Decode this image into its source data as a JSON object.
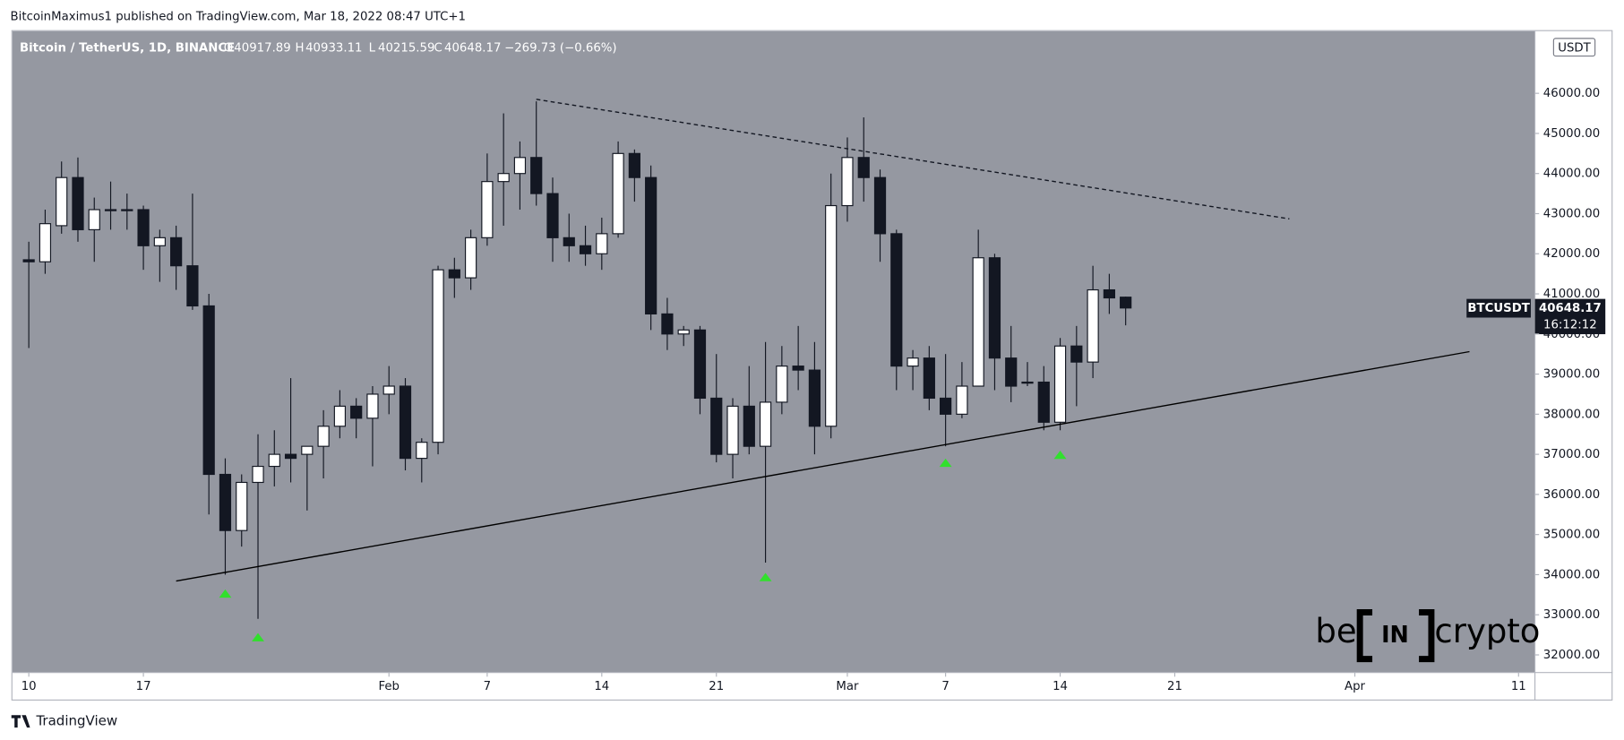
{
  "header": {
    "byline": "BitcoinMaximus1 published on TradingView.com, Mar 18, 2022 08:47 UTC+1"
  },
  "footer": {
    "brand": "TradingView"
  },
  "logo": {
    "left": "be",
    "middle": "IN",
    "right": "crypto"
  },
  "chart_data": {
    "type": "candlestick",
    "legend": {
      "symbol": "Bitcoin / TetherUS, 1D, BINANCE",
      "labels": [
        "O",
        "H",
        "L",
        "C"
      ],
      "change": "−269.73 (−0.66%)"
    },
    "currency": "USDT",
    "ticker": "BTCUSDT",
    "countdown": "16:12:12",
    "up_color": "#ffffff",
    "down_color": "#131722",
    "background": "#9598a1",
    "x": [
      "2022-01-10",
      "2022-01-11",
      "2022-01-12",
      "2022-01-13",
      "2022-01-14",
      "2022-01-15",
      "2022-01-16",
      "2022-01-17",
      "2022-01-18",
      "2022-01-19",
      "2022-01-20",
      "2022-01-21",
      "2022-01-22",
      "2022-01-23",
      "2022-01-24",
      "2022-01-25",
      "2022-01-26",
      "2022-01-27",
      "2022-01-28",
      "2022-01-29",
      "2022-01-30",
      "2022-01-31",
      "2022-02-01",
      "2022-02-02",
      "2022-02-03",
      "2022-02-04",
      "2022-02-05",
      "2022-02-06",
      "2022-02-07",
      "2022-02-08",
      "2022-02-09",
      "2022-02-10",
      "2022-02-11",
      "2022-02-12",
      "2022-02-13",
      "2022-02-14",
      "2022-02-15",
      "2022-02-16",
      "2022-02-17",
      "2022-02-18",
      "2022-02-19",
      "2022-02-20",
      "2022-02-21",
      "2022-02-22",
      "2022-02-23",
      "2022-02-24",
      "2022-02-25",
      "2022-02-26",
      "2022-02-27",
      "2022-02-28",
      "2022-03-01",
      "2022-03-02",
      "2022-03-03",
      "2022-03-04",
      "2022-03-05",
      "2022-03-06",
      "2022-03-07",
      "2022-03-08",
      "2022-03-09",
      "2022-03-10",
      "2022-03-11",
      "2022-03-12",
      "2022-03-13",
      "2022-03-14",
      "2022-03-15",
      "2022-03-16",
      "2022-03-17",
      "2022-03-18"
    ],
    "open": [
      41850,
      41800,
      42700,
      43900,
      42600,
      43100,
      43100,
      43100,
      42200,
      42400,
      41700,
      40700,
      36500,
      35100,
      36300,
      36700,
      37000,
      37000,
      37200,
      37700,
      38200,
      37900,
      38500,
      38700,
      36900,
      37300,
      41600,
      41400,
      42400,
      43800,
      44000,
      44400,
      43500,
      42400,
      42200,
      42000,
      42500,
      44500,
      43900,
      40500,
      40000,
      40100,
      38400,
      37000,
      38200,
      37200,
      38300,
      39200,
      39100,
      37700,
      43200,
      44400,
      43900,
      42500,
      39200,
      39400,
      38400,
      38000,
      38700,
      41900,
      39400,
      38800,
      38800,
      37800,
      39700,
      39300,
      41100,
      40917.89
    ],
    "high": [
      42300,
      43100,
      44300,
      44400,
      43400,
      43800,
      43500,
      43200,
      42600,
      42700,
      43500,
      41000,
      36900,
      36500,
      37500,
      37600,
      38900,
      37200,
      38100,
      38600,
      38400,
      38700,
      39200,
      38900,
      37400,
      41700,
      41900,
      42600,
      44500,
      45500,
      44800,
      45800,
      43900,
      43000,
      42700,
      42900,
      44800,
      44600,
      44200,
      40900,
      40200,
      40200,
      39500,
      38400,
      39200,
      39800,
      39700,
      40200,
      39800,
      44000,
      44900,
      45400,
      44100,
      42600,
      39600,
      39700,
      39500,
      39300,
      42600,
      42000,
      40200,
      39300,
      39200,
      39900,
      40200,
      41700,
      41500,
      40933.11
    ],
    "low": [
      39650,
      41500,
      42500,
      42300,
      41800,
      42600,
      42600,
      41600,
      41300,
      41100,
      40600,
      35500,
      34000,
      34700,
      32900,
      36200,
      36300,
      35600,
      36400,
      37400,
      37400,
      36700,
      38000,
      36600,
      36300,
      37000,
      40900,
      41100,
      42200,
      42700,
      43100,
      43200,
      41800,
      41800,
      41700,
      41600,
      42400,
      43300,
      40100,
      39600,
      39700,
      38000,
      36800,
      36400,
      37000,
      34300,
      38000,
      38600,
      37000,
      37400,
      42800,
      43300,
      41800,
      38600,
      38600,
      38100,
      37200,
      37900,
      38700,
      38600,
      38300,
      38700,
      37600,
      37600,
      38200,
      38900,
      40500,
      40215.59
    ],
    "close": [
      41800,
      42750,
      43900,
      42600,
      43100,
      43100,
      43100,
      42200,
      42400,
      41700,
      40700,
      36500,
      35100,
      36300,
      36700,
      37000,
      36900,
      37200,
      37700,
      38200,
      37900,
      38500,
      38700,
      36900,
      37300,
      41600,
      41400,
      42400,
      43800,
      44000,
      44400,
      43500,
      42400,
      42200,
      42000,
      42500,
      44500,
      43900,
      40500,
      40000,
      40100,
      38400,
      37000,
      38200,
      37200,
      38300,
      39200,
      39100,
      37700,
      43200,
      44400,
      43900,
      42500,
      39200,
      39400,
      38400,
      38000,
      38700,
      41900,
      39400,
      38700,
      38800,
      37800,
      39700,
      39300,
      41100,
      40900,
      40648.17
    ],
    "trendlines": [
      {
        "x": [
          "2022-01-19",
          "2022-04-08"
        ],
        "values": [
          33840,
          39560
        ],
        "style": "solid",
        "color": "#000000"
      },
      {
        "x": [
          "2022-02-10",
          "2022-03-28"
        ],
        "values": [
          45850,
          42870
        ],
        "style": "dashed",
        "color": "#131722"
      }
    ],
    "markers": {
      "x": [
        "2022-01-22",
        "2022-01-24",
        "2022-02-24",
        "2022-03-07",
        "2022-03-14"
      ],
      "values": [
        33530,
        32440,
        33940,
        36790,
        36990
      ],
      "color": "#31e02c"
    },
    "xlim": [
      "2022-01-09",
      "2022-04-12"
    ],
    "xticks": [
      {
        "value": "2022-01-10",
        "label": "10"
      },
      {
        "value": "2022-01-17",
        "label": "17"
      },
      {
        "value": "2022-02-01",
        "label": "Feb"
      },
      {
        "value": "2022-02-07",
        "label": "7"
      },
      {
        "value": "2022-02-14",
        "label": "14"
      },
      {
        "value": "2022-02-21",
        "label": "21"
      },
      {
        "value": "2022-03-01",
        "label": "Mar"
      },
      {
        "value": "2022-03-07",
        "label": "7"
      },
      {
        "value": "2022-03-14",
        "label": "14"
      },
      {
        "value": "2022-03-21",
        "label": "21"
      },
      {
        "value": "2022-04-01",
        "label": "Apr"
      },
      {
        "value": "2022-04-11",
        "label": "11"
      }
    ],
    "ylim": [
      31560,
      47550
    ],
    "yticks": [
      {
        "value": 32000,
        "label": "32000.00"
      },
      {
        "value": 33000,
        "label": "33000.00"
      },
      {
        "value": 34000,
        "label": "34000.00"
      },
      {
        "value": 35000,
        "label": "35000.00"
      },
      {
        "value": 36000,
        "label": "36000.00"
      },
      {
        "value": 37000,
        "label": "37000.00"
      },
      {
        "value": 38000,
        "label": "38000.00"
      },
      {
        "value": 39000,
        "label": "39000.00"
      },
      {
        "value": 40000,
        "label": "40000.00"
      },
      {
        "value": 41000,
        "label": "41000.00"
      },
      {
        "value": 42000,
        "label": "42000.00"
      },
      {
        "value": 43000,
        "label": "43000.00"
      },
      {
        "value": 44000,
        "label": "44000.00"
      },
      {
        "value": 45000,
        "label": "45000.00"
      },
      {
        "value": 46000,
        "label": "46000.00"
      }
    ],
    "grid": false
  }
}
